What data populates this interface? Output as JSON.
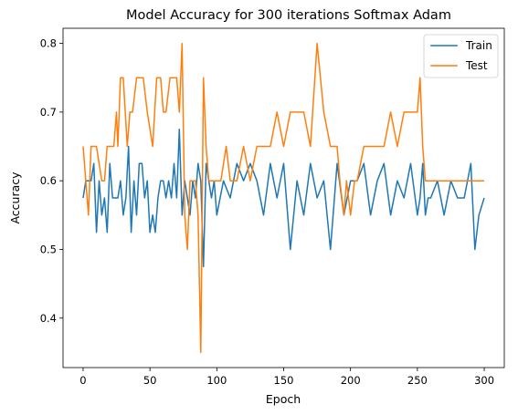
{
  "chart_data": {
    "type": "line",
    "title": "Model Accuracy for 300 iterations Softmax Adam",
    "xlabel": "Epoch",
    "ylabel": "Accuracy",
    "xlim": [
      -15,
      315
    ],
    "ylim": [
      0.328,
      0.822
    ],
    "xticks": [
      0,
      50,
      100,
      150,
      200,
      250,
      300
    ],
    "yticks": [
      0.4,
      0.5,
      0.6,
      0.7,
      0.8
    ],
    "ytick_labels": [
      "0.4",
      "0.5",
      "0.6",
      "0.7",
      "0.8"
    ],
    "legend_position": "top-right",
    "series": [
      {
        "name": "Train",
        "color": "#1f77b4",
        "x": [
          0,
          2,
          4,
          6,
          8,
          10,
          12,
          14,
          16,
          18,
          20,
          22,
          24,
          26,
          28,
          30,
          32,
          34,
          36,
          38,
          40,
          42,
          44,
          46,
          48,
          50,
          52,
          54,
          56,
          58,
          60,
          62,
          64,
          66,
          68,
          70,
          72,
          74,
          76,
          78,
          80,
          82,
          84,
          86,
          88,
          90,
          92,
          94,
          96,
          98,
          100,
          105,
          110,
          115,
          120,
          125,
          130,
          135,
          140,
          145,
          150,
          155,
          160,
          165,
          170,
          175,
          180,
          185,
          190,
          195,
          200,
          205,
          210,
          215,
          220,
          225,
          230,
          235,
          240,
          245,
          250,
          252,
          254,
          256,
          258,
          260,
          265,
          270,
          275,
          280,
          285,
          290,
          293,
          296,
          300
        ],
        "values": [
          0.575,
          0.6,
          0.6,
          0.6,
          0.625,
          0.525,
          0.6,
          0.55,
          0.575,
          0.525,
          0.625,
          0.575,
          0.575,
          0.575,
          0.6,
          0.55,
          0.575,
          0.65,
          0.525,
          0.6,
          0.55,
          0.625,
          0.625,
          0.575,
          0.6,
          0.525,
          0.55,
          0.525,
          0.575,
          0.6,
          0.6,
          0.575,
          0.6,
          0.575,
          0.625,
          0.575,
          0.675,
          0.55,
          0.6,
          0.575,
          0.55,
          0.6,
          0.575,
          0.625,
          0.6,
          0.475,
          0.625,
          0.6,
          0.575,
          0.6,
          0.55,
          0.6,
          0.575,
          0.625,
          0.6,
          0.625,
          0.6,
          0.55,
          0.625,
          0.575,
          0.625,
          0.5,
          0.6,
          0.55,
          0.625,
          0.575,
          0.6,
          0.5,
          0.625,
          0.55,
          0.6,
          0.6,
          0.625,
          0.55,
          0.6,
          0.625,
          0.55,
          0.6,
          0.575,
          0.625,
          0.55,
          0.575,
          0.625,
          0.55,
          0.575,
          0.575,
          0.6,
          0.55,
          0.6,
          0.575,
          0.575,
          0.625,
          0.5,
          0.55,
          0.575
        ]
      },
      {
        "name": "Test",
        "color": "#ff7f0e",
        "x": [
          0,
          4,
          6,
          8,
          10,
          14,
          16,
          18,
          20,
          23,
          25,
          26,
          28,
          30,
          33,
          35,
          37,
          40,
          42,
          45,
          48,
          52,
          55,
          58,
          60,
          62,
          65,
          68,
          70,
          72,
          74,
          76,
          78,
          80,
          82,
          84,
          86,
          88,
          90,
          92,
          94,
          96,
          98,
          100,
          103,
          107,
          110,
          115,
          120,
          125,
          130,
          135,
          140,
          145,
          150,
          155,
          160,
          165,
          170,
          175,
          180,
          185,
          190,
          192,
          195,
          197,
          200,
          203,
          205,
          210,
          215,
          220,
          225,
          230,
          235,
          240,
          245,
          250,
          252,
          254,
          256,
          258,
          260,
          265,
          270,
          275,
          280,
          285,
          290,
          295,
          300
        ],
        "values": [
          0.65,
          0.55,
          0.65,
          0.65,
          0.65,
          0.6,
          0.6,
          0.65,
          0.65,
          0.65,
          0.7,
          0.65,
          0.75,
          0.75,
          0.65,
          0.7,
          0.7,
          0.75,
          0.75,
          0.75,
          0.7,
          0.65,
          0.75,
          0.75,
          0.7,
          0.7,
          0.75,
          0.75,
          0.75,
          0.7,
          0.8,
          0.55,
          0.5,
          0.6,
          0.6,
          0.6,
          0.55,
          0.35,
          0.75,
          0.65,
          0.6,
          0.6,
          0.6,
          0.6,
          0.6,
          0.65,
          0.6,
          0.6,
          0.65,
          0.6,
          0.65,
          0.65,
          0.65,
          0.7,
          0.65,
          0.7,
          0.7,
          0.7,
          0.65,
          0.8,
          0.7,
          0.65,
          0.65,
          0.6,
          0.55,
          0.6,
          0.55,
          0.6,
          0.6,
          0.65,
          0.65,
          0.65,
          0.65,
          0.7,
          0.65,
          0.7,
          0.7,
          0.7,
          0.75,
          0.65,
          0.6,
          0.6,
          0.6,
          0.6,
          0.6,
          0.6,
          0.6,
          0.6,
          0.6,
          0.6,
          0.6
        ]
      }
    ]
  }
}
